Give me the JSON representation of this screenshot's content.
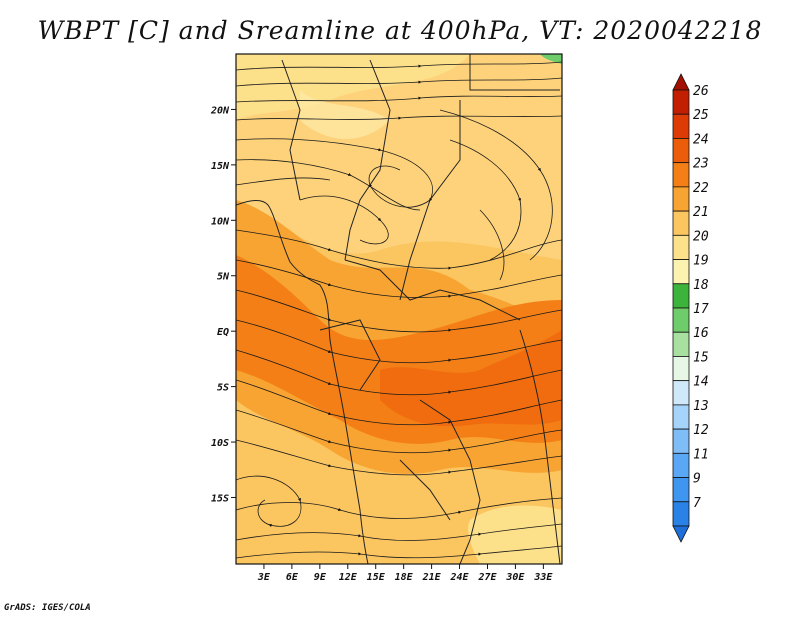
{
  "title": "WBPT [C] and Sreamline at 400hPa, VT: 2020042218",
  "credit": "GrADS: IGES/COLA",
  "map": {
    "lon_range": [
      0,
      35
    ],
    "lat_range": [
      -21,
      25
    ],
    "lon_ticks": [
      "3E",
      "6E",
      "9E",
      "12E",
      "15E",
      "18E",
      "21E",
      "24E",
      "27E",
      "30E",
      "33E"
    ],
    "lat_ticks": [
      "20N",
      "15N",
      "10N",
      "5N",
      "EQ",
      "5S",
      "10S",
      "15S"
    ]
  },
  "colorbar": {
    "labels": [
      "7",
      "9",
      "11",
      "12",
      "13",
      "14",
      "15",
      "16",
      "17",
      "18",
      "19",
      "20",
      "21",
      "22",
      "23",
      "24",
      "25",
      "26"
    ],
    "colors": [
      "#1e6fd9",
      "#2b82e6",
      "#3e96f0",
      "#5aa8f5",
      "#7fbdf7",
      "#a6d3fa",
      "#cfe9fb",
      "#e6f7e6",
      "#a8e0a0",
      "#6fcc6a",
      "#3cb43c",
      "#fdf3b0",
      "#fde08a",
      "#fbc560",
      "#f8a432",
      "#f47f16",
      "#ec5d0a",
      "#dd3a05",
      "#c21e02",
      "#a30f00"
    ]
  }
}
